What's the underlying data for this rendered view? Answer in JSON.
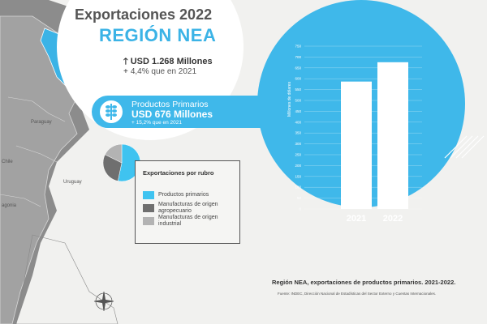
{
  "header": {
    "title": "Exportaciones 2022",
    "region": "REGIÓN NEA"
  },
  "stats": {
    "total": "USD 1.268 Millones",
    "change": "4,4% que en 2021"
  },
  "primary_products": {
    "label": "Productos Primarios",
    "value": "USD 676 Millones",
    "change": "15,2% que en 2021"
  },
  "legend": {
    "title": "Exportaciones por rubro",
    "items": [
      {
        "label": "Productos primarios",
        "color": "#3fc3f0"
      },
      {
        "label": "Manufacturas de origen agropecuario",
        "color": "#6f6f6f"
      },
      {
        "label": "Manufacturas de origen industrial",
        "color": "#b3b3b3"
      }
    ]
  },
  "map_labels": {
    "paraguay": "Paraguay",
    "uruguay": "Uruguay",
    "chile": "Chile",
    "patagonia": "agonia"
  },
  "caption": "Región NEA, exportaciones de productos primarios. 2021-2022.",
  "source": "Fuente: INDEC, Dirección Nacional de Estadísticas del Sector Externo y Cuentas Internacionales.",
  "colors": {
    "accent": "#3bb3e6",
    "bar": "#ffffff",
    "pie_primary": "#3fc3f0",
    "pie_agro": "#6f6f6f",
    "pie_industrial": "#b3b3b3"
  },
  "chart_data": [
    {
      "type": "bar",
      "categories": [
        "2021",
        "2022"
      ],
      "values": [
        587,
        676
      ],
      "ylabel": "Millones de dólares",
      "ylim": [
        0,
        750
      ],
      "yticks": [
        "0",
        "50",
        "100",
        "150",
        "200",
        "250",
        "300",
        "350",
        "400",
        "450",
        "500",
        "550",
        "600",
        "650",
        "700",
        "750"
      ],
      "grid": true
    },
    {
      "type": "pie",
      "categories": [
        "Productos primarios",
        "Manufacturas de origen agropecuario",
        "Manufacturas de origen industrial"
      ],
      "values": [
        53.3,
        29.0,
        17.7
      ]
    }
  ]
}
